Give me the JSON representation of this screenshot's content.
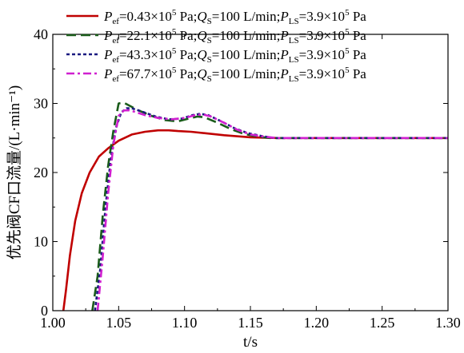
{
  "chart_data": {
    "type": "line",
    "xlabel": "t/s",
    "ylabel": "优先阀CF口流量/(L·min⁻¹)",
    "xlim": [
      1.0,
      1.3
    ],
    "ylim": [
      0,
      40
    ],
    "x_ticks": [
      "1.00",
      "1.05",
      "1.10",
      "1.15",
      "1.20",
      "1.25",
      "1.30"
    ],
    "y_ticks": [
      "0",
      "10",
      "20",
      "30",
      "40"
    ],
    "grid": false,
    "legend_position": "top-right",
    "series": [
      {
        "name": "Pef=0.43×10^5 Pa;QS=100 L/min;PLS=3.9×10^5 Pa",
        "legend": {
          "p": "P",
          "p_sub": "ef",
          "val": "=0.43×10",
          "exp": "5",
          "rest": " Pa;",
          "q": "Q",
          "q_sub": "S",
          "qval": "=100 L/min;",
          "pls": "P",
          "pls_sub": "LS",
          "plsval": "=3.9×10",
          "pls_exp": "5",
          "unit": " Pa"
        },
        "color": "#c00000",
        "dash": "",
        "x": [
          1.008,
          1.01,
          1.013,
          1.017,
          1.022,
          1.028,
          1.035,
          1.042,
          1.05,
          1.06,
          1.07,
          1.08,
          1.088,
          1.095,
          1.105,
          1.115,
          1.13,
          1.15,
          1.17,
          1.2,
          1.25,
          1.3
        ],
        "y": [
          0,
          3,
          8,
          13,
          17,
          20,
          22.3,
          23.5,
          24.6,
          25.5,
          25.9,
          26.1,
          26.1,
          26.0,
          25.9,
          25.7,
          25.4,
          25.1,
          25.0,
          25.0,
          25.0,
          25.0
        ]
      },
      {
        "name": "Pef=22.1×10^5 Pa;QS=100 L/min;PLS=3.9×10^5 Pa",
        "legend": {
          "p": "P",
          "p_sub": "ef",
          "val": "=22.1×10",
          "exp": "5",
          "rest": " Pa;",
          "q": "Q",
          "q_sub": "S",
          "qval": "=100 L/min;",
          "pls": "P",
          "pls_sub": "LS",
          "plsval": "=3.9×10",
          "pls_exp": "5",
          "unit": " Pa"
        },
        "color": "#1a5c1a",
        "dash": "12,6",
        "x": [
          1.03,
          1.034,
          1.038,
          1.042,
          1.046,
          1.05,
          1.054,
          1.058,
          1.065,
          1.075,
          1.085,
          1.095,
          1.105,
          1.11,
          1.115,
          1.125,
          1.135,
          1.145,
          1.155,
          1.165,
          1.18,
          1.22,
          1.26,
          1.3
        ],
        "y": [
          0,
          5,
          14,
          21,
          26,
          30,
          30.1,
          29.7,
          29,
          28.2,
          27.6,
          27.4,
          27.9,
          28.1,
          28.0,
          27.2,
          26.3,
          25.6,
          25.2,
          25.0,
          25.0,
          25.0,
          25.0,
          25.0
        ]
      },
      {
        "name": "Pef=43.3×10^5 Pa;QS=100 L/min;PLS=3.9×10^5 Pa",
        "legend": {
          "p": "P",
          "p_sub": "ef",
          "val": "=43.3×10",
          "exp": "5",
          "rest": " Pa;",
          "q": "Q",
          "q_sub": "S",
          "qval": "=100 L/min;",
          "pls": "P",
          "pls_sub": "LS",
          "plsval": "=3.9×10",
          "pls_exp": "5",
          "unit": " Pa"
        },
        "color": "#1a1a80",
        "dash": "4,3",
        "x": [
          1.032,
          1.036,
          1.04,
          1.044,
          1.048,
          1.052,
          1.056,
          1.06,
          1.068,
          1.078,
          1.088,
          1.098,
          1.106,
          1.112,
          1.118,
          1.128,
          1.138,
          1.148,
          1.158,
          1.168,
          1.185,
          1.22,
          1.26,
          1.3
        ],
        "y": [
          0,
          6,
          15,
          22,
          26.5,
          28.7,
          29.3,
          29.3,
          28.8,
          28.1,
          27.7,
          27.8,
          28.3,
          28.5,
          28.3,
          27.4,
          26.4,
          25.7,
          25.3,
          25.0,
          25.0,
          25.0,
          25.0,
          25.0
        ]
      },
      {
        "name": "Pef=67.7×10^5 Pa;QS=100 L/min;PLS=3.9×10^5 Pa",
        "legend": {
          "p": "P",
          "p_sub": "ef",
          "val": "=67.7×10",
          "exp": "5",
          "rest": " Pa;",
          "q": "Q",
          "q_sub": "S",
          "qval": "=100 L/min;",
          "pls": "P",
          "pls_sub": "LS",
          "plsval": "=3.9×10",
          "pls_exp": "5",
          "unit": " Pa"
        },
        "color": "#d020d0",
        "dash": "10,4,3,4",
        "x": [
          1.034,
          1.038,
          1.042,
          1.046,
          1.05,
          1.054,
          1.058,
          1.062,
          1.07,
          1.08,
          1.09,
          1.1,
          1.108,
          1.114,
          1.12,
          1.13,
          1.14,
          1.15,
          1.16,
          1.17,
          1.19,
          1.22,
          1.26,
          1.3
        ],
        "y": [
          0,
          8,
          17,
          24,
          28.2,
          29.0,
          29.0,
          28.8,
          28.3,
          27.9,
          27.7,
          27.9,
          28.3,
          28.4,
          28.1,
          27.2,
          26.2,
          25.5,
          25.2,
          25.0,
          25.0,
          25.0,
          25.0,
          25.0
        ]
      }
    ]
  }
}
